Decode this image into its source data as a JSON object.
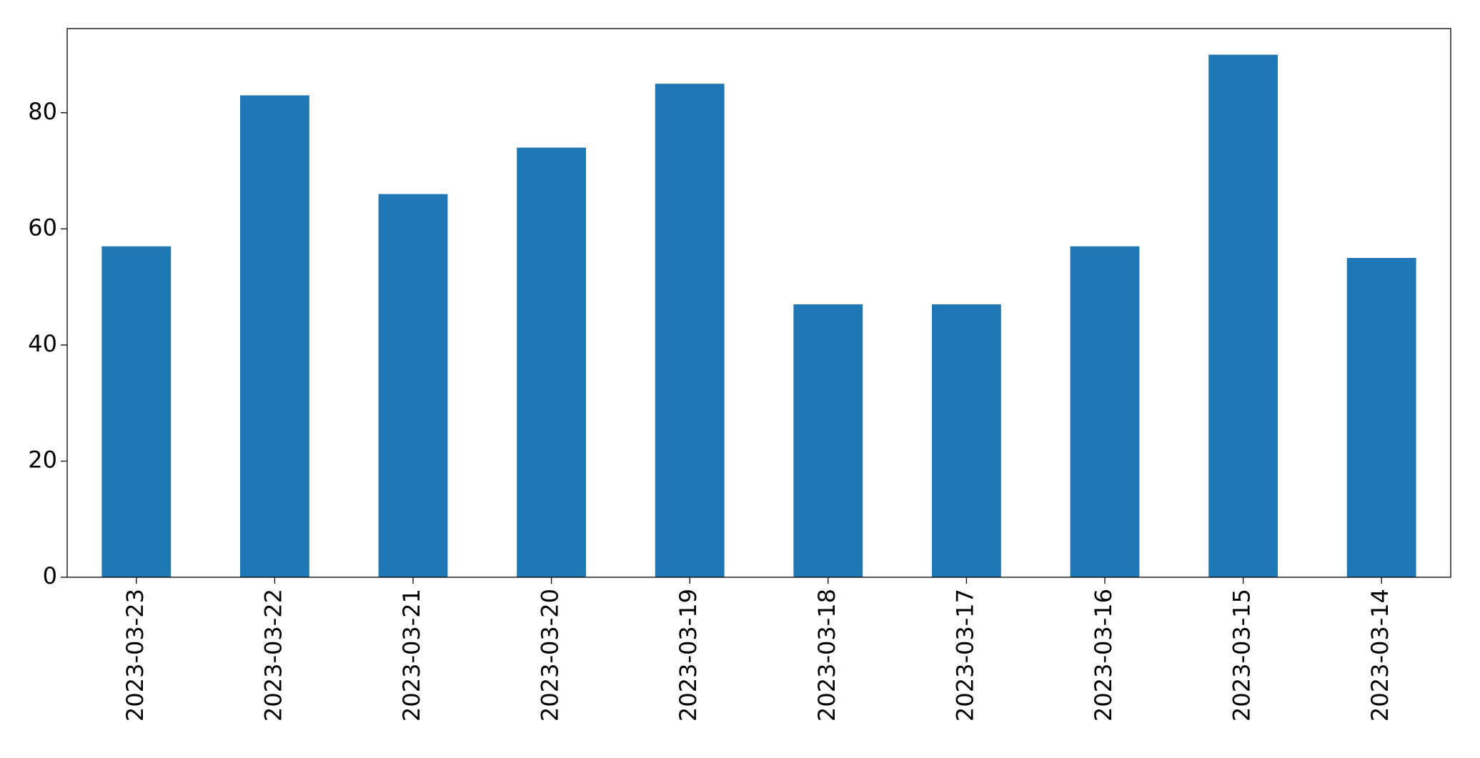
{
  "chart_data": {
    "type": "bar",
    "categories": [
      "2023-03-23",
      "2023-03-22",
      "2023-03-21",
      "2023-03-20",
      "2023-03-19",
      "2023-03-18",
      "2023-03-17",
      "2023-03-16",
      "2023-03-15",
      "2023-03-14"
    ],
    "values": [
      57,
      83,
      66,
      74,
      85,
      47,
      47,
      57,
      90,
      55
    ],
    "color": "#1f77b4",
    "ylim": [
      0,
      94.5
    ],
    "yticks": [
      0,
      20,
      40,
      60,
      80
    ],
    "grid": false
  }
}
